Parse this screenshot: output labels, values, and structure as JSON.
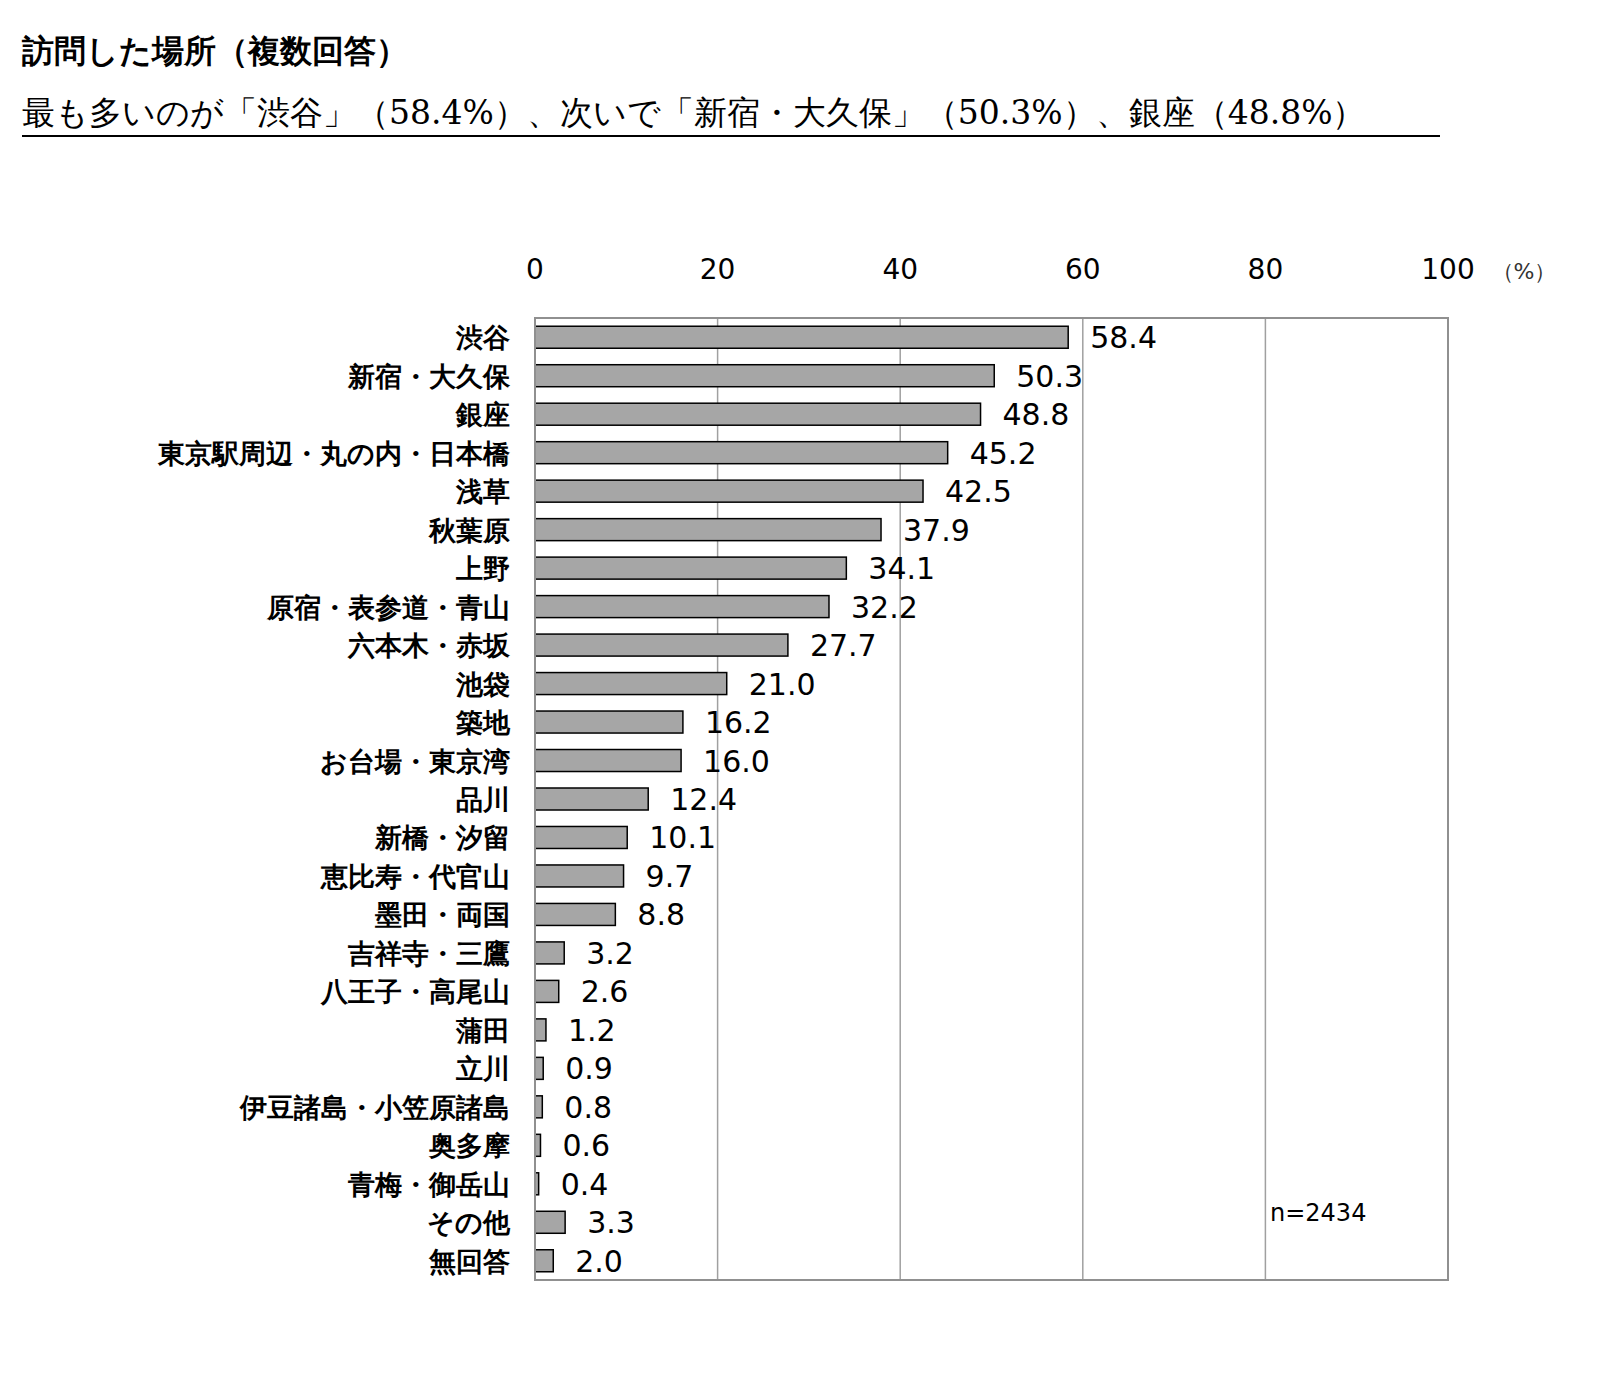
{
  "chart_data": {
    "type": "bar",
    "orientation": "horizontal",
    "title": "訪問した場所（複数回答）",
    "subtitle": "最も多いのが「渋谷」（58.4%）、次いで「新宿・大久保」（50.3%）、銀座（48.8%）",
    "x_label": "（%）",
    "annotations": [
      "n=2434"
    ],
    "categories": [
      "渋谷",
      "新宿・大久保",
      "銀座",
      "東京駅周辺・丸の内・日本橋",
      "浅草",
      "秋葉原",
      "上野",
      "原宿・表参道・青山",
      "六本木・赤坂",
      "池袋",
      "築地",
      "お台場・東京湾",
      "品川",
      "新橋・汐留",
      "恵比寿・代官山",
      "墨田・両国",
      "吉祥寺・三鷹",
      "八王子・高尾山",
      "蒲田",
      "立川",
      "伊豆諸島・小笠原諸島",
      "奥多摩",
      "青梅・御岳山",
      "その他",
      "無回答"
    ],
    "values": [
      58.4,
      50.3,
      48.8,
      45.2,
      42.5,
      37.9,
      34.1,
      32.2,
      27.7,
      21.0,
      16.2,
      16.0,
      12.4,
      10.1,
      9.7,
      8.8,
      3.2,
      2.6,
      1.2,
      0.9,
      0.8,
      0.6,
      0.4,
      3.3,
      2.0
    ],
    "value_labels": [
      "58.4",
      "50.3",
      "48.8",
      "45.2",
      "42.5",
      "37.9",
      "34.1",
      "32.2",
      "27.7",
      "21.0",
      "16.2",
      "16.0",
      "12.4",
      "10.1",
      "9.7",
      "8.8",
      "3.2",
      "2.6",
      "1.2",
      "0.9",
      "0.8",
      "0.6",
      "0.4",
      "3.3",
      "2.0"
    ],
    "color": "#a6a6a6",
    "xlim": [
      0,
      100
    ],
    "xticks": [
      0,
      20,
      40,
      60,
      80,
      100
    ],
    "grid": true,
    "data_labels": true
  }
}
